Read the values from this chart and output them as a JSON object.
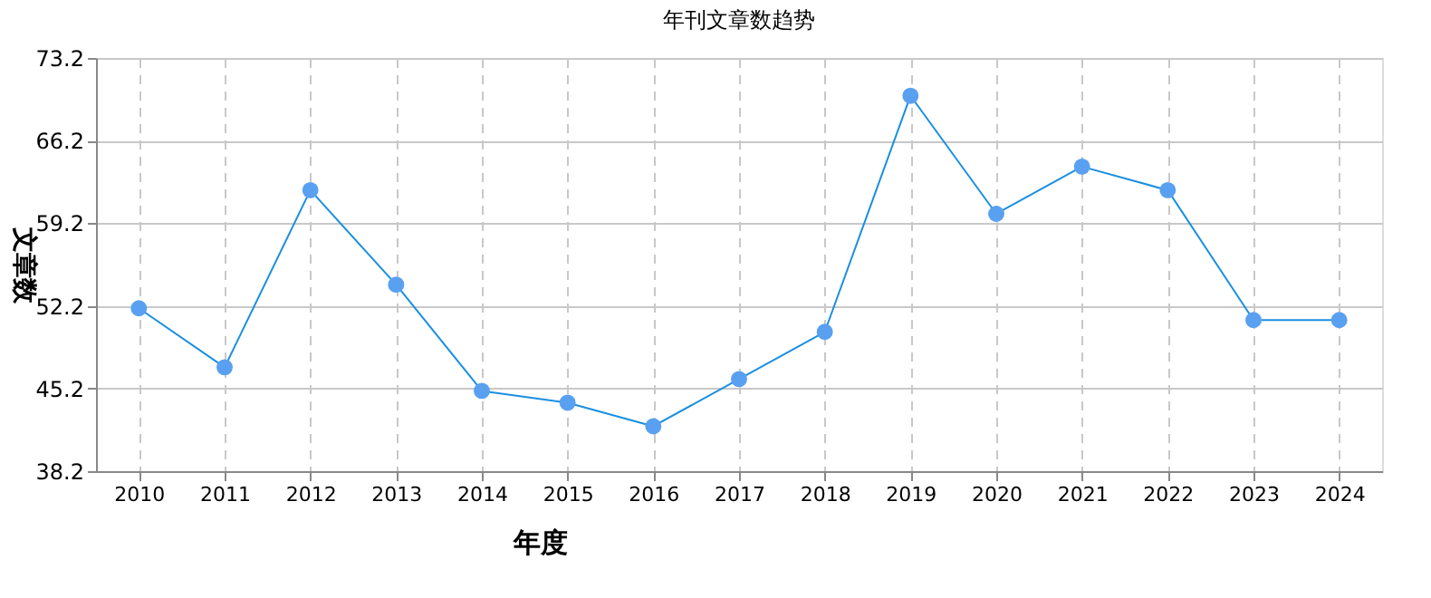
{
  "chart_data": {
    "type": "line",
    "title": "年刊文章数趋势",
    "xlabel": "年度",
    "ylabel": "文章数",
    "categories": [
      "2010",
      "2011",
      "2012",
      "2013",
      "2014",
      "2015",
      "2016",
      "2017",
      "2018",
      "2019",
      "2020",
      "2021",
      "2022",
      "2023",
      "2024"
    ],
    "series": [
      {
        "color": "#1a8fe0",
        "values": [
          52,
          47,
          62,
          54,
          45,
          44,
          42,
          46,
          50,
          70,
          60,
          64,
          62,
          51,
          51
        ]
      }
    ],
    "ylim": [
      38.2,
      73.2
    ],
    "yticks": [
      38.2,
      45.2,
      52.2,
      59.2,
      66.2,
      73.2
    ],
    "grid": true,
    "legend": false,
    "marker": "circle",
    "line_style": "solid"
  }
}
